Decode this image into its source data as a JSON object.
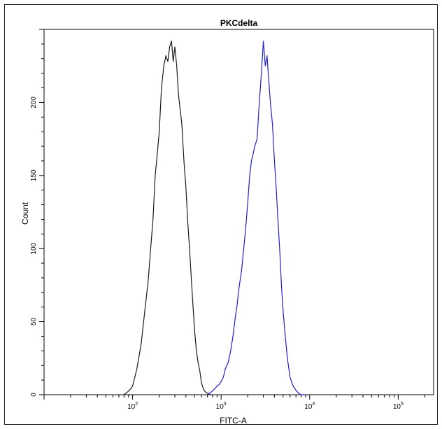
{
  "chart_data": {
    "type": "line",
    "title": "PKCdelta",
    "xlabel": "FITC-A",
    "ylabel": "Count",
    "x_scale": "log",
    "xlim": [
      10,
      251188
    ],
    "ylim": [
      0,
      250
    ],
    "x_ticks": [
      {
        "value": 100,
        "label": "10",
        "exp": "2"
      },
      {
        "value": 1000,
        "label": "10",
        "exp": "3"
      },
      {
        "value": 10000,
        "label": "10",
        "exp": "4"
      },
      {
        "value": 100000,
        "label": "10",
        "exp": "5"
      }
    ],
    "y_ticks": [
      {
        "value": 0,
        "label": "0"
      },
      {
        "value": 50,
        "label": "50"
      },
      {
        "value": 100,
        "label": "100"
      },
      {
        "value": 150,
        "label": "150"
      },
      {
        "value": 200,
        "label": "200"
      }
    ],
    "series": [
      {
        "color": "#1a1a1a",
        "x": [
          80,
          88,
          95,
          100,
          106,
          112,
          118,
          125,
          132,
          140,
          150,
          160,
          170,
          180,
          190,
          200,
          212,
          225,
          238,
          250,
          262,
          275,
          288,
          300,
          315,
          330,
          345,
          360,
          380,
          400,
          420,
          440,
          460,
          480,
          500,
          525,
          550,
          575,
          600,
          630,
          660,
          700,
          750,
          800
        ],
        "y": [
          0,
          2,
          4,
          6,
          12,
          18,
          26,
          35,
          48,
          62,
          78,
          100,
          120,
          150,
          165,
          180,
          210,
          225,
          232,
          228,
          238,
          242,
          228,
          238,
          225,
          205,
          195,
          185,
          160,
          142,
          118,
          100,
          80,
          62,
          45,
          30,
          22,
          16,
          8,
          4,
          2,
          1,
          0,
          0
        ]
      },
      {
        "color": "#1f1fc8",
        "x": [
          700,
          780,
          850,
          900,
          950,
          1000,
          1060,
          1120,
          1200,
          1280,
          1360,
          1440,
          1520,
          1600,
          1700,
          1800,
          1900,
          2000,
          2100,
          2200,
          2300,
          2400,
          2550,
          2700,
          2850,
          3000,
          3150,
          3300,
          3450,
          3600,
          3800,
          4000,
          4200,
          4400,
          4600,
          4800,
          5000,
          5300,
          5600,
          6000,
          6500,
          7000,
          7500,
          8000,
          9000
        ],
        "y": [
          0,
          2,
          4,
          6,
          7,
          9,
          12,
          18,
          22,
          30,
          40,
          52,
          62,
          74,
          85,
          100,
          115,
          132,
          150,
          160,
          165,
          170,
          175,
          200,
          220,
          242,
          225,
          232,
          215,
          200,
          185,
          160,
          140,
          118,
          98,
          75,
          58,
          40,
          25,
          12,
          6,
          3,
          1,
          0,
          0
        ]
      }
    ],
    "grid": false,
    "legend": "none"
  }
}
